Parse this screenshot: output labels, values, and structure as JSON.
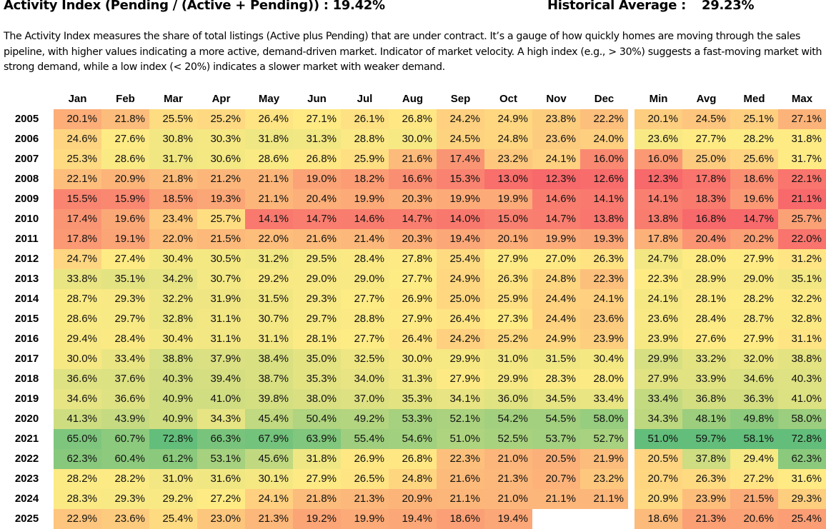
{
  "header": {
    "title": "Activity Index (Pending / (Active + Pending)) : 19.42%",
    "historical_label": "Historical Average :",
    "historical_value": "29.23%"
  },
  "description": "The Activity Index measures the share of total listings (Active plus Pending) that are under contract. It’s a gauge of how quickly homes are moving through the sales pipeline, with higher values indicating a more active, demand-driven market. Indicator of market velocity. A high index (e.g., > 30%) suggests a fast-moving market with strong demand, while a low index (< 20%) indicates a slower market with weaker demand.",
  "colors": {
    "low": "#F8696B",
    "mid": "#FFEB84",
    "high": "#63BE7B"
  },
  "table": {
    "months": [
      "Jan",
      "Feb",
      "Mar",
      "Apr",
      "May",
      "Jun",
      "Jul",
      "Aug",
      "Sep",
      "Oct",
      "Nov",
      "Dec"
    ],
    "stats": [
      "Min",
      "Avg",
      "Med",
      "Max"
    ],
    "rows": [
      {
        "year": "2005",
        "values": [
          "20.1%",
          "21.8%",
          "25.5%",
          "25.2%",
          "26.4%",
          "27.1%",
          "26.1%",
          "26.8%",
          "24.2%",
          "24.9%",
          "23.8%",
          "22.2%"
        ],
        "stats": [
          "20.1%",
          "24.5%",
          "25.1%",
          "27.1%"
        ]
      },
      {
        "year": "2006",
        "values": [
          "24.6%",
          "27.6%",
          "30.8%",
          "30.3%",
          "31.8%",
          "31.3%",
          "28.8%",
          "30.0%",
          "24.5%",
          "24.8%",
          "23.6%",
          "24.0%"
        ],
        "stats": [
          "23.6%",
          "27.7%",
          "28.2%",
          "31.8%"
        ]
      },
      {
        "year": "2007",
        "values": [
          "25.3%",
          "28.6%",
          "31.7%",
          "30.6%",
          "28.6%",
          "26.8%",
          "25.9%",
          "21.6%",
          "17.4%",
          "23.2%",
          "24.1%",
          "16.0%"
        ],
        "stats": [
          "16.0%",
          "25.0%",
          "25.6%",
          "31.7%"
        ]
      },
      {
        "year": "2008",
        "values": [
          "22.1%",
          "20.9%",
          "21.8%",
          "21.2%",
          "21.1%",
          "19.0%",
          "18.2%",
          "16.6%",
          "15.3%",
          "13.0%",
          "12.3%",
          "12.6%"
        ],
        "stats": [
          "12.3%",
          "17.8%",
          "18.6%",
          "22.1%"
        ]
      },
      {
        "year": "2009",
        "values": [
          "15.5%",
          "15.9%",
          "18.5%",
          "19.3%",
          "21.1%",
          "20.4%",
          "19.9%",
          "20.3%",
          "19.9%",
          "19.9%",
          "14.6%",
          "14.1%"
        ],
        "stats": [
          "14.1%",
          "18.3%",
          "19.6%",
          "21.1%"
        ]
      },
      {
        "year": "2010",
        "values": [
          "17.4%",
          "19.6%",
          "23.4%",
          "25.7%",
          "14.1%",
          "14.7%",
          "14.6%",
          "14.7%",
          "14.0%",
          "15.0%",
          "14.7%",
          "13.8%"
        ],
        "stats": [
          "13.8%",
          "16.8%",
          "14.7%",
          "25.7%"
        ]
      },
      {
        "year": "2011",
        "values": [
          "17.8%",
          "19.1%",
          "22.0%",
          "21.5%",
          "22.0%",
          "21.6%",
          "21.4%",
          "20.3%",
          "19.4%",
          "20.1%",
          "19.9%",
          "19.3%"
        ],
        "stats": [
          "17.8%",
          "20.4%",
          "20.2%",
          "22.0%"
        ]
      },
      {
        "year": "2012",
        "values": [
          "24.7%",
          "27.4%",
          "30.4%",
          "30.5%",
          "31.2%",
          "29.5%",
          "28.4%",
          "27.8%",
          "25.4%",
          "27.9%",
          "27.0%",
          "26.3%"
        ],
        "stats": [
          "24.7%",
          "28.0%",
          "27.9%",
          "31.2%"
        ]
      },
      {
        "year": "2013",
        "values": [
          "33.8%",
          "35.1%",
          "34.2%",
          "30.7%",
          "29.2%",
          "29.0%",
          "29.0%",
          "27.7%",
          "24.9%",
          "26.3%",
          "24.8%",
          "22.3%"
        ],
        "stats": [
          "22.3%",
          "28.9%",
          "29.0%",
          "35.1%"
        ]
      },
      {
        "year": "2014",
        "values": [
          "28.7%",
          "29.3%",
          "32.2%",
          "31.9%",
          "31.5%",
          "29.3%",
          "27.7%",
          "26.9%",
          "25.0%",
          "25.9%",
          "24.4%",
          "24.1%"
        ],
        "stats": [
          "24.1%",
          "28.1%",
          "28.2%",
          "32.2%"
        ]
      },
      {
        "year": "2015",
        "values": [
          "28.6%",
          "29.7%",
          "32.8%",
          "31.1%",
          "30.7%",
          "29.7%",
          "28.8%",
          "27.9%",
          "26.4%",
          "27.3%",
          "24.4%",
          "23.6%"
        ],
        "stats": [
          "23.6%",
          "28.4%",
          "28.7%",
          "32.8%"
        ]
      },
      {
        "year": "2016",
        "values": [
          "29.4%",
          "28.4%",
          "30.4%",
          "31.1%",
          "31.1%",
          "28.1%",
          "27.7%",
          "26.4%",
          "24.2%",
          "25.2%",
          "24.9%",
          "23.9%"
        ],
        "stats": [
          "23.9%",
          "27.6%",
          "27.9%",
          "31.1%"
        ]
      },
      {
        "year": "2017",
        "values": [
          "30.0%",
          "33.4%",
          "38.8%",
          "37.9%",
          "38.4%",
          "35.0%",
          "32.5%",
          "30.0%",
          "29.9%",
          "31.0%",
          "31.5%",
          "30.4%"
        ],
        "stats": [
          "29.9%",
          "33.2%",
          "32.0%",
          "38.8%"
        ]
      },
      {
        "year": "2018",
        "values": [
          "36.6%",
          "37.6%",
          "40.3%",
          "39.4%",
          "38.7%",
          "35.3%",
          "34.0%",
          "31.3%",
          "27.9%",
          "29.9%",
          "28.3%",
          "28.0%"
        ],
        "stats": [
          "27.9%",
          "33.9%",
          "34.6%",
          "40.3%"
        ]
      },
      {
        "year": "2019",
        "values": [
          "34.6%",
          "36.6%",
          "40.9%",
          "41.0%",
          "39.8%",
          "38.0%",
          "37.0%",
          "35.3%",
          "34.1%",
          "36.0%",
          "34.5%",
          "33.4%"
        ],
        "stats": [
          "33.4%",
          "36.8%",
          "36.3%",
          "41.0%"
        ]
      },
      {
        "year": "2020",
        "values": [
          "41.3%",
          "43.9%",
          "40.9%",
          "34.3%",
          "45.4%",
          "50.4%",
          "49.2%",
          "53.3%",
          "52.1%",
          "54.2%",
          "54.5%",
          "58.0%"
        ],
        "stats": [
          "34.3%",
          "48.1%",
          "49.8%",
          "58.0%"
        ]
      },
      {
        "year": "2021",
        "values": [
          "65.0%",
          "60.7%",
          "72.8%",
          "66.3%",
          "67.9%",
          "63.9%",
          "55.4%",
          "54.6%",
          "51.0%",
          "52.5%",
          "53.7%",
          "52.7%"
        ],
        "stats": [
          "51.0%",
          "59.7%",
          "58.1%",
          "72.8%"
        ]
      },
      {
        "year": "2022",
        "values": [
          "62.3%",
          "60.4%",
          "61.2%",
          "53.1%",
          "45.6%",
          "31.8%",
          "26.9%",
          "26.8%",
          "22.3%",
          "21.0%",
          "20.5%",
          "21.9%"
        ],
        "stats": [
          "20.5%",
          "37.8%",
          "29.4%",
          "62.3%"
        ]
      },
      {
        "year": "2023",
        "values": [
          "28.2%",
          "28.2%",
          "31.0%",
          "31.6%",
          "30.1%",
          "27.9%",
          "26.5%",
          "24.8%",
          "21.6%",
          "21.3%",
          "20.7%",
          "23.2%"
        ],
        "stats": [
          "20.7%",
          "26.3%",
          "27.2%",
          "31.6%"
        ]
      },
      {
        "year": "2024",
        "values": [
          "28.3%",
          "29.3%",
          "29.2%",
          "27.2%",
          "24.1%",
          "21.8%",
          "21.3%",
          "20.9%",
          "21.1%",
          "21.0%",
          "21.1%",
          "21.1%"
        ],
        "stats": [
          "20.9%",
          "23.9%",
          "21.5%",
          "29.3%"
        ]
      },
      {
        "year": "2025",
        "values": [
          "22.9%",
          "23.6%",
          "25.4%",
          "23.0%",
          "21.3%",
          "19.2%",
          "19.9%",
          "19.4%",
          "18.6%",
          "19.4%",
          null,
          null
        ],
        "stats": [
          "18.6%",
          "21.3%",
          "20.6%",
          "25.4%"
        ]
      }
    ]
  }
}
